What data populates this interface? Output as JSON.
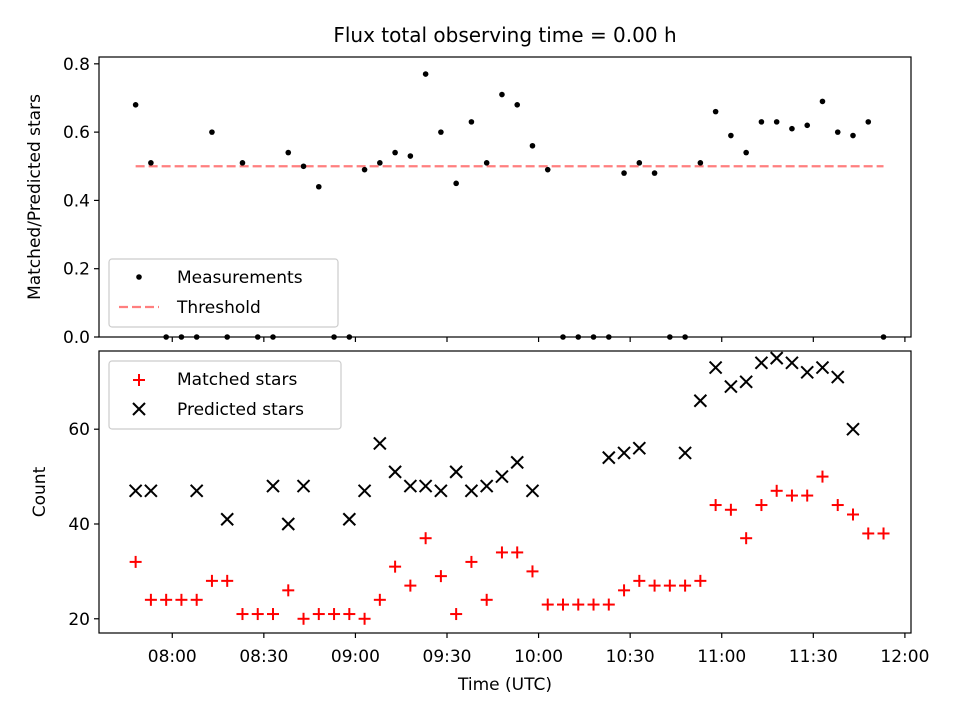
{
  "chart_data": [
    {
      "type": "scatter",
      "title": "Flux total observing time = 0.00 h",
      "ylabel": "Matched/Predicted stars",
      "xlim": [
        "07:36",
        "12:02"
      ],
      "ylim": [
        0,
        0.82
      ],
      "yticks": [
        "0.0",
        "0.2",
        "0.4",
        "0.6",
        "0.8"
      ],
      "legend": {
        "position": "lower-left",
        "measurements_label": "Measurements",
        "threshold_label": "Threshold"
      },
      "threshold": {
        "value": 0.5,
        "x_range": [
          "07:48",
          "11:53"
        ],
        "color": "#ff7f7f",
        "style": "dashed"
      },
      "series": [
        {
          "name": "Measurements",
          "color": "#000000",
          "x": [
            "07:48",
            "07:53",
            "07:58",
            "08:03",
            "08:08",
            "08:13",
            "08:18",
            "08:23",
            "08:28",
            "08:33",
            "08:38",
            "08:43",
            "08:48",
            "08:53",
            "08:58",
            "09:03",
            "09:08",
            "09:13",
            "09:18",
            "09:23",
            "09:28",
            "09:33",
            "09:38",
            "09:43",
            "09:48",
            "09:53",
            "09:58",
            "10:03",
            "10:08",
            "10:13",
            "10:18",
            "10:23",
            "10:28",
            "10:33",
            "10:38",
            "10:43",
            "10:48",
            "10:53",
            "10:58",
            "11:03",
            "11:08",
            "11:13",
            "11:18",
            "11:23",
            "11:28",
            "11:33",
            "11:38",
            "11:43",
            "11:48",
            "11:53"
          ],
          "y": [
            0.68,
            0.51,
            0.0,
            0.0,
            0.0,
            0.6,
            0.0,
            0.51,
            0.0,
            0.0,
            0.54,
            0.5,
            0.44,
            0.0,
            0.0,
            0.49,
            0.51,
            0.54,
            0.53,
            0.77,
            0.6,
            0.45,
            0.63,
            0.51,
            0.71,
            0.68,
            0.56,
            0.49,
            0.0,
            0.0,
            0.0,
            0.0,
            0.48,
            0.51,
            0.48,
            0.0,
            0.0,
            0.51,
            0.66,
            0.59,
            0.54,
            0.63,
            0.63,
            0.61,
            0.62,
            0.69,
            0.6,
            0.59,
            0.63,
            0.0
          ]
        }
      ]
    },
    {
      "type": "scatter",
      "xlabel": "Time (UTC)",
      "ylabel": "Count",
      "xlim": [
        "07:36",
        "12:02"
      ],
      "xticks": [
        "08:00",
        "08:30",
        "09:00",
        "09:30",
        "10:00",
        "10:30",
        "11:00",
        "11:30",
        "12:00"
      ],
      "ylim": [
        17,
        76.5
      ],
      "yticks": [
        "20",
        "40",
        "60"
      ],
      "legend": {
        "position": "upper-left",
        "matched_label": "Matched stars",
        "predicted_label": "Predicted stars"
      },
      "series": [
        {
          "name": "Matched stars",
          "marker": "+",
          "color": "#ff0000",
          "x": [
            "07:48",
            "07:53",
            "07:58",
            "08:03",
            "08:08",
            "08:13",
            "08:18",
            "08:23",
            "08:28",
            "08:33",
            "08:38",
            "08:43",
            "08:48",
            "08:53",
            "08:58",
            "09:03",
            "09:08",
            "09:13",
            "09:18",
            "09:23",
            "09:28",
            "09:33",
            "09:38",
            "09:43",
            "09:48",
            "09:53",
            "09:58",
            "10:03",
            "10:08",
            "10:13",
            "10:18",
            "10:23",
            "10:28",
            "10:33",
            "10:38",
            "10:43",
            "10:48",
            "10:53",
            "10:58",
            "11:03",
            "11:08",
            "11:13",
            "11:18",
            "11:23",
            "11:28",
            "11:33",
            "11:38",
            "11:43",
            "11:48",
            "11:53"
          ],
          "y": [
            32,
            24,
            24,
            24,
            24,
            28,
            28,
            21,
            21,
            21,
            26,
            20,
            21,
            21,
            21,
            20,
            24,
            31,
            27,
            37,
            29,
            21,
            32,
            24,
            34,
            34,
            30,
            23,
            23,
            23,
            23,
            23,
            26,
            28,
            27,
            27,
            27,
            28,
            44,
            43,
            37,
            44,
            47,
            46,
            46,
            50,
            44,
            42,
            38,
            38
          ]
        },
        {
          "name": "Predicted stars",
          "marker": "x",
          "color": "#000000",
          "x": [
            "07:48",
            "07:53",
            "08:08",
            "08:18",
            "08:33",
            "08:38",
            "08:43",
            "08:58",
            "09:03",
            "09:08",
            "09:13",
            "09:18",
            "09:23",
            "09:28",
            "09:33",
            "09:38",
            "09:43",
            "09:48",
            "09:53",
            "09:58",
            "10:23",
            "10:28",
            "10:33",
            "10:48",
            "10:53",
            "10:58",
            "11:03",
            "11:08",
            "11:13",
            "11:18",
            "11:23",
            "11:28",
            "11:33",
            "11:38",
            "11:43"
          ],
          "y": [
            47,
            47,
            47,
            41,
            48,
            40,
            48,
            41,
            47,
            57,
            51,
            48,
            48,
            47,
            51,
            47,
            48,
            50,
            53,
            47,
            54,
            55,
            56,
            55,
            66,
            73,
            69,
            70,
            74,
            75,
            74,
            72,
            73,
            71,
            60
          ]
        }
      ]
    }
  ]
}
